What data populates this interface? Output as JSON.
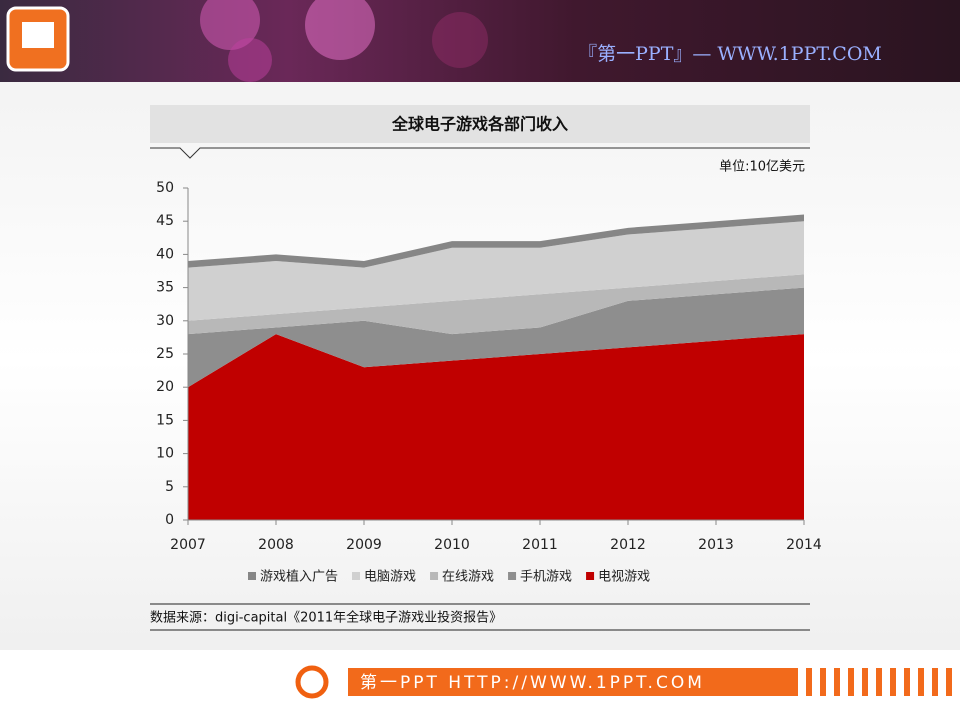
{
  "header": {
    "brand": "『第一PPT』— WWW.1PPT.COM"
  },
  "chart_data": {
    "type": "stacked-area",
    "title": "全球电子游戏各部门收入",
    "unit": "单位:10亿美元",
    "categories": [
      "2007",
      "2008",
      "2009",
      "2010",
      "2011",
      "2012",
      "2013",
      "2014"
    ],
    "series": [
      {
        "name": "游戏植入广告",
        "color": "#868686",
        "values": [
          1,
          1,
          1,
          1,
          1,
          1,
          1,
          1
        ]
      },
      {
        "name": "电脑游戏",
        "color": "#d0d0d0",
        "values": [
          8,
          8,
          6,
          8,
          7,
          8,
          8,
          8
        ]
      },
      {
        "name": "在线游戏",
        "color": "#b8b8b8",
        "values": [
          2,
          2,
          2,
          5,
          5,
          2,
          2,
          2
        ]
      },
      {
        "name": "手机游戏",
        "color": "#8e8e8e",
        "values": [
          8,
          1,
          7,
          4,
          4,
          7,
          7,
          7
        ]
      },
      {
        "name": "电视游戏",
        "color": "#c00000",
        "values": [
          20,
          28,
          23,
          24,
          25,
          26,
          27,
          28
        ]
      }
    ],
    "ylim": [
      0,
      50
    ],
    "yticks": [
      0,
      5,
      10,
      15,
      20,
      25,
      30,
      35,
      40,
      45,
      50
    ],
    "grid": false,
    "source": "数据来源：digi-capital《2011年全球电子游戏业投资报告》"
  },
  "footer": {
    "text": "第一PPT HTTP://WWW.1PPT.COM"
  }
}
